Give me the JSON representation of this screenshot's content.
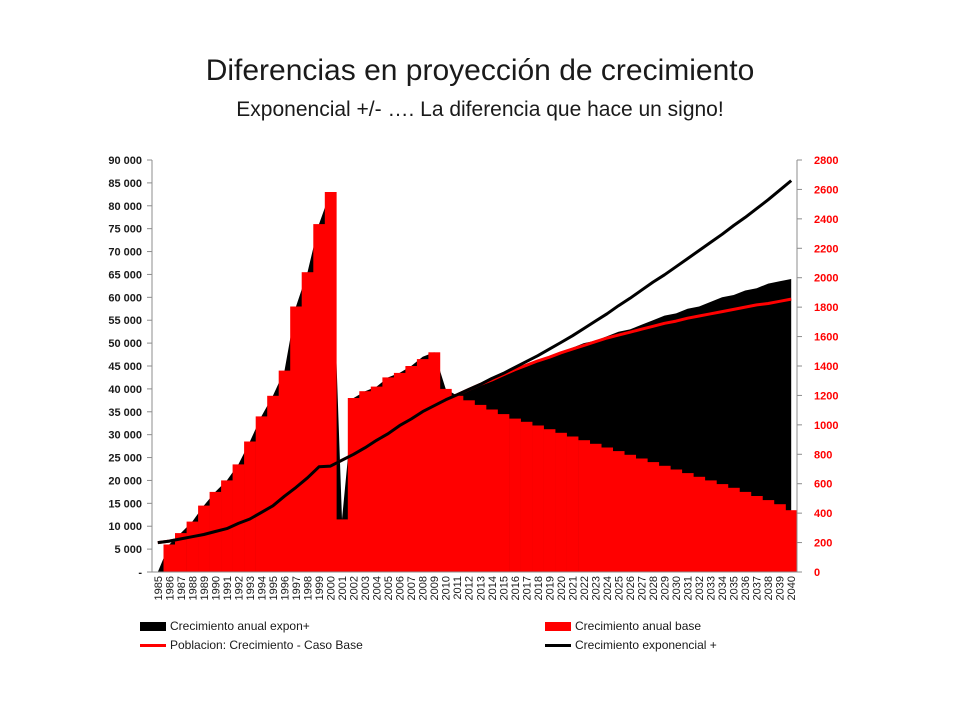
{
  "title": "Diferencias en proyección de crecimiento",
  "subtitle": "Exponencial +/- …. La diferencia que hace un signo!",
  "colors": {
    "red": "#ff0000",
    "black": "#000000",
    "axis_right": "#ff0000"
  },
  "chart_data": {
    "type": "area",
    "title": "",
    "xlabel": "",
    "ylabel_left": "",
    "ylabel_right": "",
    "ylim_left": [
      0,
      90000
    ],
    "ylim_right": [
      0,
      2800
    ],
    "y_ticks_left": [
      "-",
      "5 000",
      "10 000",
      "15 000",
      "20 000",
      "25 000",
      "30 000",
      "35 000",
      "40 000",
      "45 000",
      "50 000",
      "55 000",
      "60 000",
      "65 000",
      "70 000",
      "75 000",
      "80 000",
      "85 000",
      "90 000"
    ],
    "y_ticks_right": [
      "0",
      "200",
      "400",
      "600",
      "800",
      "1000",
      "1200",
      "1400",
      "1600",
      "1800",
      "2000",
      "2200",
      "2400",
      "2600",
      "2800"
    ],
    "grid": false,
    "legend_position": "bottom",
    "categories": [
      "1985",
      "1986",
      "1987",
      "1988",
      "1989",
      "1990",
      "1991",
      "1992",
      "1993",
      "1994",
      "1995",
      "1996",
      "1997",
      "1998",
      "1999",
      "2000",
      "2001",
      "2002",
      "2003",
      "2004",
      "2005",
      "2006",
      "2007",
      "2008",
      "2009",
      "2010",
      "2011",
      "2012",
      "2013",
      "2014",
      "2015",
      "2016",
      "2017",
      "2018",
      "2019",
      "2020",
      "2021",
      "2022",
      "2023",
      "2024",
      "2025",
      "2026",
      "2027",
      "2028",
      "2029",
      "2030",
      "2031",
      "2032",
      "2033",
      "2034",
      "2035",
      "2036",
      "2037",
      "2038",
      "2039",
      "2040"
    ],
    "series": [
      {
        "name": "Crecimiento anual expon+",
        "axis": "left",
        "style": "area",
        "color": "#000000",
        "values": [
          0,
          6000,
          8500,
          11000,
          14500,
          17500,
          20000,
          23500,
          28500,
          34000,
          38500,
          44000,
          58000,
          65500,
          76000,
          83000,
          11500,
          38000,
          39500,
          40500,
          42500,
          43500,
          45000,
          47000,
          48000,
          40000,
          38500,
          40000,
          41000,
          42000,
          43000,
          44000,
          45000,
          46000,
          47000,
          48000,
          49000,
          50000,
          50500,
          51500,
          52500,
          53000,
          54000,
          55000,
          56000,
          56500,
          57500,
          58000,
          59000,
          60000,
          60500,
          61500,
          62000,
          63000,
          63500,
          64000
        ]
      },
      {
        "name": "Crecimiento anual base",
        "axis": "left",
        "style": "bar",
        "color": "#ff0000",
        "values": [
          0,
          6000,
          8500,
          11000,
          14500,
          17500,
          20000,
          23500,
          28500,
          34000,
          38500,
          44000,
          58000,
          65500,
          76000,
          83000,
          11500,
          38000,
          39500,
          40500,
          42500,
          43500,
          45000,
          46500,
          48000,
          40000,
          38500,
          37500,
          36500,
          35500,
          34500,
          33500,
          32800,
          32000,
          31200,
          30400,
          29600,
          28800,
          28000,
          27200,
          26400,
          25600,
          24800,
          24000,
          23200,
          22400,
          21600,
          20800,
          20000,
          19200,
          18400,
          17500,
          16600,
          15700,
          14800,
          13500
        ]
      },
      {
        "name": "Poblacion: Crecimiento - Caso Base",
        "axis": "right",
        "style": "line",
        "color": "#ff0000",
        "values": [
          200,
          210,
          225,
          240,
          255,
          275,
          295,
          330,
          360,
          405,
          450,
          515,
          575,
          640,
          715,
          720,
          760,
          800,
          845,
          895,
          940,
          995,
          1040,
          1090,
          1130,
          1170,
          1205,
          1240,
          1275,
          1305,
          1340,
          1375,
          1405,
          1435,
          1460,
          1490,
          1515,
          1540,
          1565,
          1590,
          1610,
          1630,
          1650,
          1670,
          1690,
          1705,
          1725,
          1740,
          1755,
          1770,
          1785,
          1800,
          1815,
          1825,
          1840,
          1855
        ]
      },
      {
        "name": "Crecimiento exponencial +",
        "axis": "right",
        "style": "line",
        "color": "#000000",
        "values": [
          200,
          210,
          225,
          240,
          255,
          275,
          295,
          330,
          360,
          405,
          450,
          515,
          575,
          640,
          715,
          720,
          760,
          800,
          845,
          895,
          940,
          995,
          1040,
          1090,
          1130,
          1170,
          1205,
          1240,
          1275,
          1315,
          1350,
          1390,
          1430,
          1470,
          1515,
          1560,
          1605,
          1655,
          1705,
          1755,
          1810,
          1860,
          1915,
          1970,
          2020,
          2075,
          2130,
          2185,
          2240,
          2295,
          2355,
          2410,
          2470,
          2530,
          2595,
          2660
        ]
      }
    ]
  }
}
